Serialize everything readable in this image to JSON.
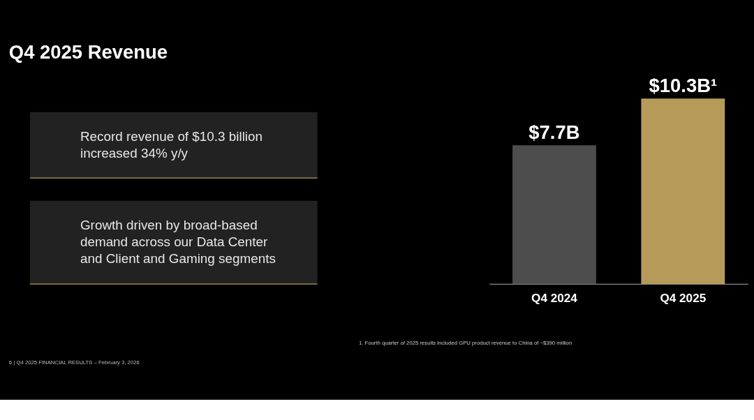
{
  "chart_data": {
    "type": "bar",
    "title": "Q4 2025 Revenue",
    "categories": [
      "Q4 2024",
      "Q4 2025"
    ],
    "values": [
      7.7,
      10.3
    ],
    "colors": [
      "#4d4d4d",
      "#b59a5a"
    ],
    "value_labels": [
      "$7.7B",
      "$10.3B¹"
    ],
    "grid": false,
    "annotations": [
      "Record revenue of $10.3 billion increased 34% y/y",
      "Growth driven by broad-based demand across our Data Center and Client and Gaming segments",
      "1. Fourth quarter of 2025 results included GPU product revenue to China of ~$390 million",
      "6   |   Q4 2025 FINANCIAL RESULTS – February 3, 2026"
    ]
  }
}
